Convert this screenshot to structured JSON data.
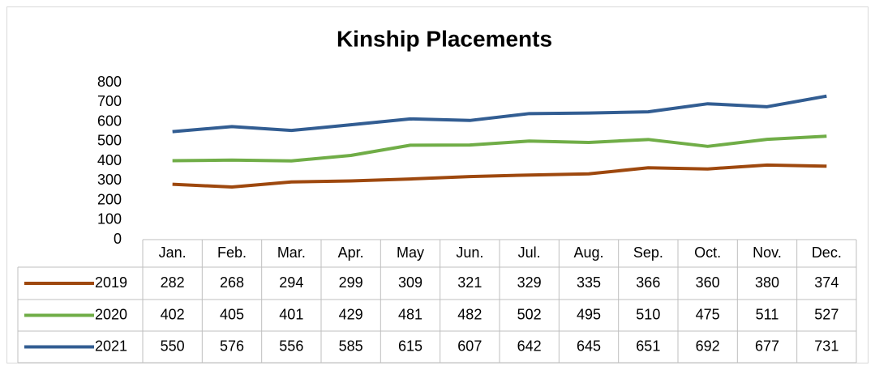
{
  "chart_data": {
    "type": "line",
    "title": "Kinship Placements",
    "categories": [
      "Jan.",
      "Feb.",
      "Mar.",
      "Apr.",
      "May",
      "Jun.",
      "Jul.",
      "Aug.",
      "Sep.",
      "Oct.",
      "Nov.",
      "Dec."
    ],
    "series": [
      {
        "name": "2019",
        "color": "#9e480e",
        "values": [
          282,
          268,
          294,
          299,
          309,
          321,
          329,
          335,
          366,
          360,
          380,
          374
        ]
      },
      {
        "name": "2020",
        "color": "#70ad47",
        "values": [
          402,
          405,
          401,
          429,
          481,
          482,
          502,
          495,
          510,
          475,
          511,
          527
        ]
      },
      {
        "name": "2021",
        "color": "#325d92",
        "values": [
          550,
          576,
          556,
          585,
          615,
          607,
          642,
          645,
          651,
          692,
          677,
          731
        ]
      }
    ],
    "ylim": [
      0,
      800
    ],
    "yticks": [
      0,
      100,
      200,
      300,
      400,
      500,
      600,
      700,
      800
    ],
    "grid": false
  }
}
